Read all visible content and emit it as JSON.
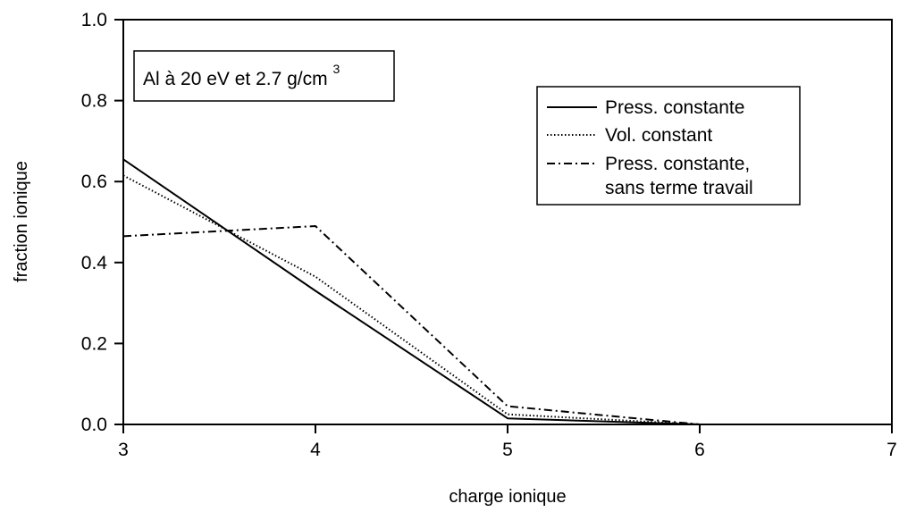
{
  "chart_data": {
    "type": "line",
    "title": "",
    "xlabel": "charge ionique",
    "ylabel": "fraction ionique",
    "xlim": [
      3,
      7
    ],
    "ylim": [
      0,
      1
    ],
    "x_ticks": [
      3,
      4,
      5,
      6,
      7
    ],
    "x_tick_labels": [
      "3",
      "4",
      "5",
      "6",
      "7"
    ],
    "y_ticks": [
      0,
      0.2,
      0.4,
      0.6,
      0.8,
      1.0
    ],
    "y_tick_labels": [
      "0.0",
      "0.2",
      "0.4",
      "0.6",
      "0.8",
      "1.0"
    ],
    "grid": false,
    "legend_position": "top-right",
    "annotation": {
      "main": "Al à 20 eV et 2.7 g/cm",
      "sup": "3"
    },
    "x": [
      3,
      4,
      5,
      6,
      7
    ],
    "series": [
      {
        "name": "Press. constante",
        "style": "solid",
        "values": [
          0.655,
          0.33,
          0.015,
          0.0,
          0.0
        ]
      },
      {
        "name": "Vol. constant",
        "style": "dotted",
        "values": [
          0.615,
          0.365,
          0.025,
          0.0,
          0.0
        ]
      },
      {
        "name": "Press. constante,",
        "name_line2": "sans terme travail",
        "style": "dashdot",
        "values": [
          0.465,
          0.49,
          0.045,
          0.0,
          0.0
        ]
      }
    ],
    "colors": {
      "lines": "#000000",
      "background": "#ffffff"
    }
  }
}
